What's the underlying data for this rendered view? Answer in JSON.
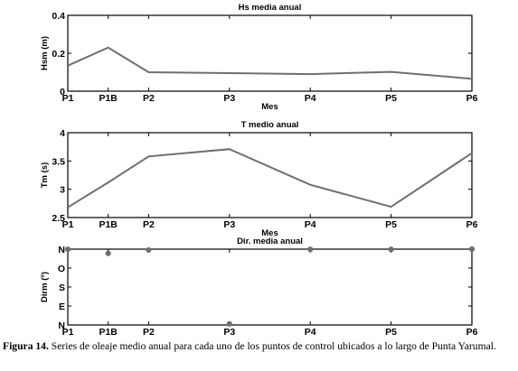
{
  "chart_data": [
    {
      "type": "line",
      "title": "Hs media anual",
      "xlabel": "Mes",
      "ylabel": "Hsm (m)",
      "categories": [
        "P1",
        "P1B",
        "P2",
        "P3",
        "P4",
        "P5",
        "P6"
      ],
      "x": [
        1,
        2,
        3,
        5,
        7,
        9,
        11
      ],
      "xlim": [
        1,
        11
      ],
      "ylim": [
        0,
        0.4
      ],
      "yticks": [
        0,
        0.2,
        0.4
      ],
      "ytick_labels": [
        "0",
        "0.2",
        "0.4"
      ],
      "series": [
        {
          "values": [
            0.135,
            0.23,
            0.1,
            0.095,
            0.09,
            0.102,
            0.065
          ]
        }
      ],
      "grid": false
    },
    {
      "type": "line",
      "title": "T medio anual",
      "xlabel": "Mes",
      "ylabel": "Tm  (s)",
      "categories": [
        "P1",
        "P1B",
        "P2",
        "P3",
        "P4",
        "P5",
        "P6"
      ],
      "x": [
        1,
        2,
        3,
        5,
        7,
        9,
        11
      ],
      "xlim": [
        1,
        11
      ],
      "ylim": [
        2.5,
        4
      ],
      "yticks": [
        2.5,
        3,
        3.5,
        4
      ],
      "ytick_labels": [
        "2.5",
        "3",
        "3.5",
        "4"
      ],
      "series": [
        {
          "values": [
            2.68,
            3.12,
            3.58,
            3.71,
            3.08,
            2.69,
            3.64
          ]
        }
      ],
      "grid": false
    },
    {
      "type": "scatter",
      "title": "Dir. media anual",
      "xlabel": "",
      "ylabel": "Dirm (º)",
      "categories": [
        "P1",
        "P1B",
        "P2",
        "P3",
        "P4",
        "P5",
        "P6"
      ],
      "x": [
        1,
        2,
        3,
        5,
        7,
        9,
        11
      ],
      "xlim": [
        1,
        11
      ],
      "ylim": [
        0,
        360
      ],
      "yticks": [
        0,
        90,
        180,
        270,
        360
      ],
      "ytick_labels": [
        "N",
        "E",
        "S",
        "O",
        "N"
      ],
      "series": [
        {
          "values": [
            359,
            340,
            356,
            5,
            359,
            359,
            360
          ]
        }
      ],
      "grid": false
    }
  ],
  "caption": {
    "label": "Figura 14.",
    "text": "Series de oleaje medio anual para cada uno de los puntos de control ubicados a lo largo de Punta Yarumal."
  }
}
